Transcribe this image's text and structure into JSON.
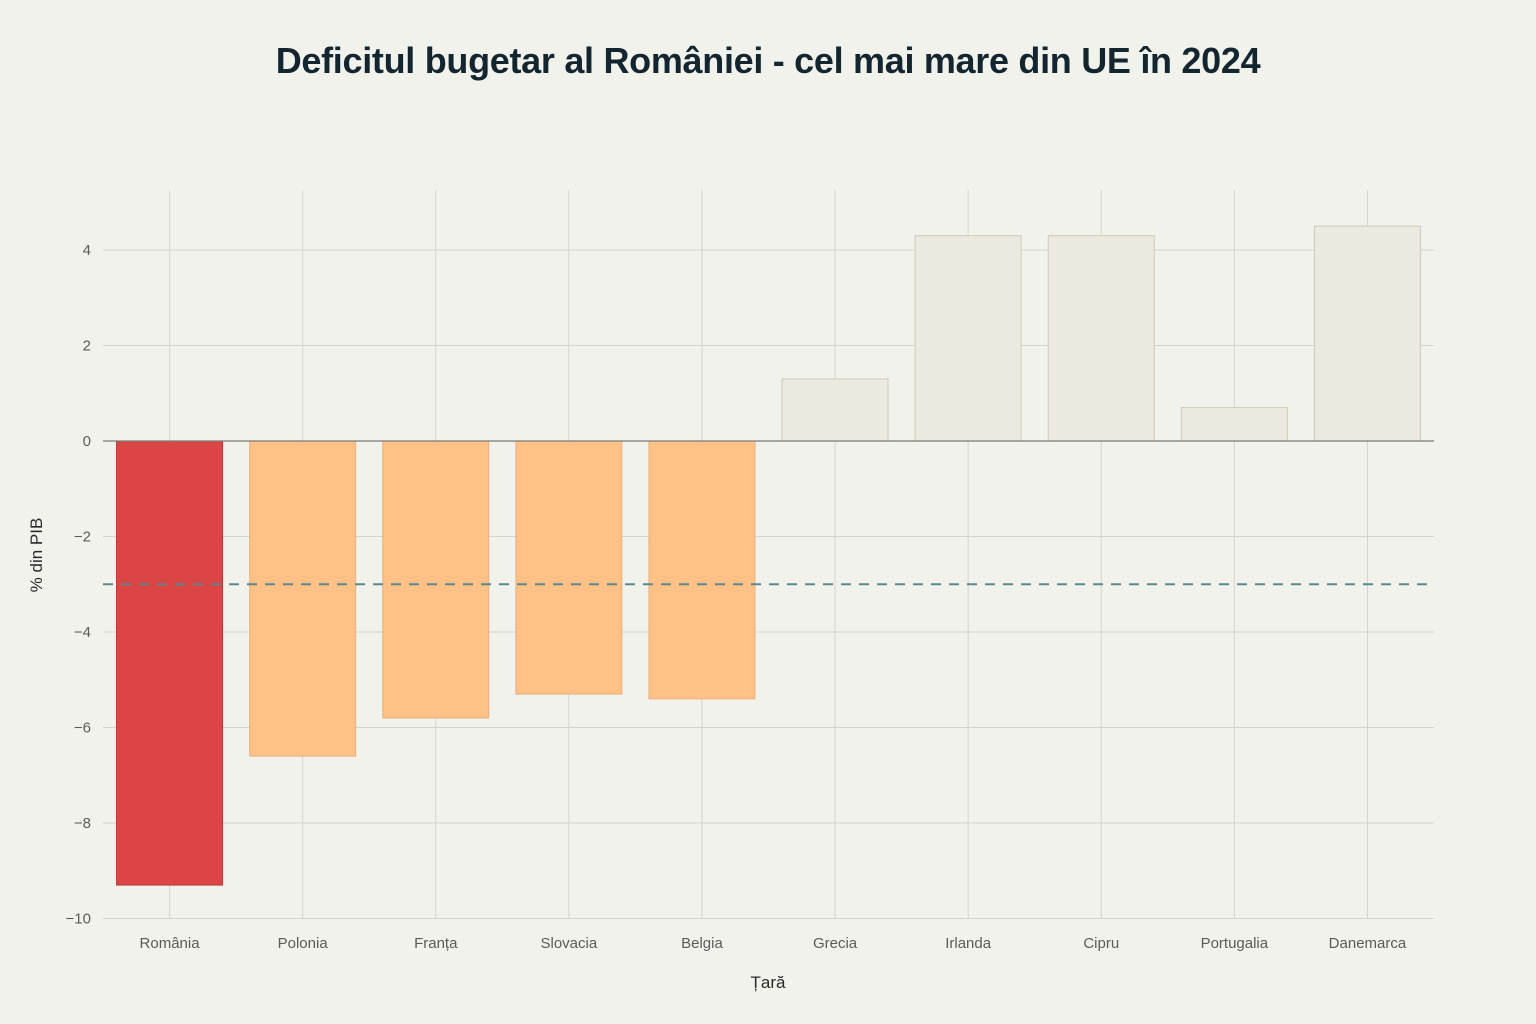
{
  "chart_data": {
    "type": "bar",
    "title": "Deficitul bugetar al României - cel mai mare din UE în 2024",
    "xlabel": "Țară",
    "ylabel": "% din PIB",
    "categories": [
      "România",
      "Polonia",
      "Franța",
      "Slovacia",
      "Belgia",
      "Grecia",
      "Irlanda",
      "Cipru",
      "Portugalia",
      "Danemarca"
    ],
    "values": [
      -9.3,
      -6.6,
      -5.8,
      -5.3,
      -5.4,
      1.3,
      4.3,
      4.3,
      0.7,
      4.5
    ],
    "colors": [
      "#db4545",
      "#ffc185",
      "#ffc185",
      "#ffc185",
      "#ffc185",
      "#eceae0",
      "#eceae0",
      "#eceae0",
      "#eceae0",
      "#eceae0"
    ],
    "yticks": [
      4,
      2,
      0,
      -2,
      -4,
      -6,
      -8,
      -10
    ],
    "ytick_labels": [
      "4",
      "2",
      "0",
      "−2",
      "−4",
      "−6",
      "−8",
      "−10"
    ],
    "ylim": [
      -10,
      5.25
    ],
    "reference_line": {
      "value": -3,
      "style": "dashed",
      "color": "#5d878f"
    },
    "grid": true,
    "legend": false
  }
}
